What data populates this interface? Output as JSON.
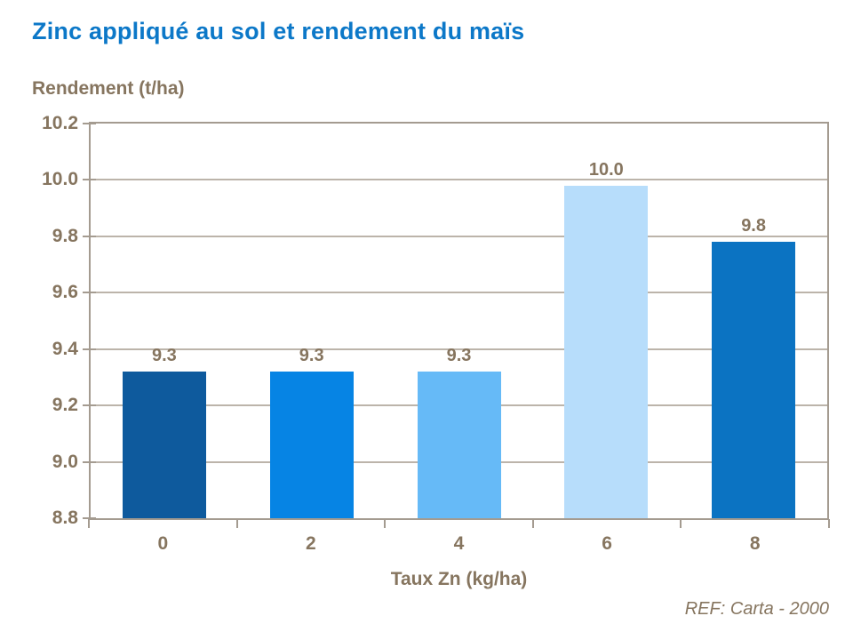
{
  "title": {
    "text": "Zinc appliqué au sol et rendement du maïs",
    "color": "#0c78c8"
  },
  "chart_data": {
    "type": "bar",
    "title": "Zinc appliqué au sol et rendement du maïs",
    "ylabel": "Rendement (t/ha)",
    "xlabel": "Taux Zn (kg/ha)",
    "categories": [
      "0",
      "2",
      "4",
      "6",
      "8"
    ],
    "values": [
      9.3,
      9.3,
      9.3,
      10.0,
      9.8
    ],
    "bar_labels": [
      "9.3",
      "9.3",
      "9.3",
      "10.0",
      "9.8"
    ],
    "bar_render_values": [
      9.32,
      9.32,
      9.32,
      9.98,
      9.78
    ],
    "bar_colors": [
      "#0e5a9d",
      "#0684e4",
      "#66baf7",
      "#b7ddfb",
      "#0b73c2"
    ],
    "ylim": [
      8.8,
      10.2
    ],
    "yticks": [
      8.8,
      9.0,
      9.2,
      9.4,
      9.6,
      9.8,
      10.0,
      10.2
    ],
    "ytick_labels": [
      "8.8",
      "9.0",
      "9.2",
      "9.4",
      "9.6",
      "9.8",
      "10.0",
      "10.2"
    ],
    "grid": true,
    "legend": false
  },
  "footer": {
    "ref": "REF: Carta - 2000"
  },
  "colors": {
    "title_text": "#0c78c8",
    "axis_text": "#86755f",
    "axis_line": "#a49b90",
    "gridline": "#bcb4aa",
    "background": "#ffffff"
  }
}
